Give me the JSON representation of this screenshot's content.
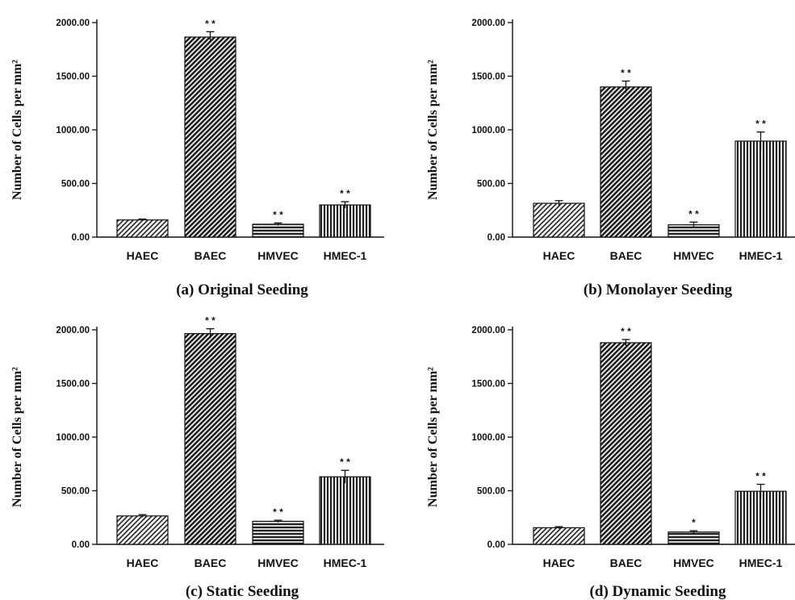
{
  "chart_data": [
    {
      "type": "bar",
      "caption": "(a) Original Seeding",
      "ylabel": "Number of Cells per mm²",
      "categories": [
        "HAEC",
        "BAEC",
        "HMVEC",
        "HMEC-1"
      ],
      "values": [
        160,
        1865,
        120,
        300
      ],
      "errors": [
        8,
        50,
        12,
        30
      ],
      "significance": [
        "",
        "* *",
        "* *",
        "* *"
      ],
      "ylim": [
        0,
        2000
      ],
      "yticks": [
        "0.00",
        "500.00",
        "1000.00",
        "1500.00",
        "2000.00"
      ]
    },
    {
      "type": "bar",
      "caption": "(b) Monolayer Seeding",
      "ylabel": "Number of Cells per mm²",
      "categories": [
        "HAEC",
        "BAEC",
        "HMVEC",
        "HMEC-1"
      ],
      "values": [
        315,
        1400,
        115,
        895
      ],
      "errors": [
        25,
        55,
        25,
        85
      ],
      "significance": [
        "",
        "* *",
        "* *",
        "* *"
      ],
      "ylim": [
        0,
        2000
      ],
      "yticks": [
        "0.00",
        "500.00",
        "1000.00",
        "1500.00",
        "2000.00"
      ]
    },
    {
      "type": "bar",
      "caption": "(c) Static Seeding",
      "ylabel": "Number of Cells per mm²",
      "categories": [
        "HAEC",
        "BAEC",
        "HMVEC",
        "HMEC-1"
      ],
      "values": [
        265,
        1965,
        215,
        630
      ],
      "errors": [
        12,
        45,
        10,
        60
      ],
      "significance": [
        "",
        "* *",
        "* *",
        "* *"
      ],
      "ylim": [
        0,
        2000
      ],
      "yticks": [
        "0.00",
        "500.00",
        "1000.00",
        "1500.00",
        "2000.00"
      ]
    },
    {
      "type": "bar",
      "caption": "(d) Dynamic Seeding",
      "ylabel": "Number of Cells per mm²",
      "categories": [
        "HAEC",
        "BAEC",
        "HMVEC",
        "HMEC-1"
      ],
      "values": [
        155,
        1880,
        115,
        495
      ],
      "errors": [
        10,
        30,
        12,
        65
      ],
      "significance": [
        "",
        "* *",
        "*",
        "* *"
      ],
      "ylim": [
        0,
        2000
      ],
      "yticks": [
        "0.00",
        "500.00",
        "1000.00",
        "1500.00",
        "2000.00"
      ]
    }
  ]
}
